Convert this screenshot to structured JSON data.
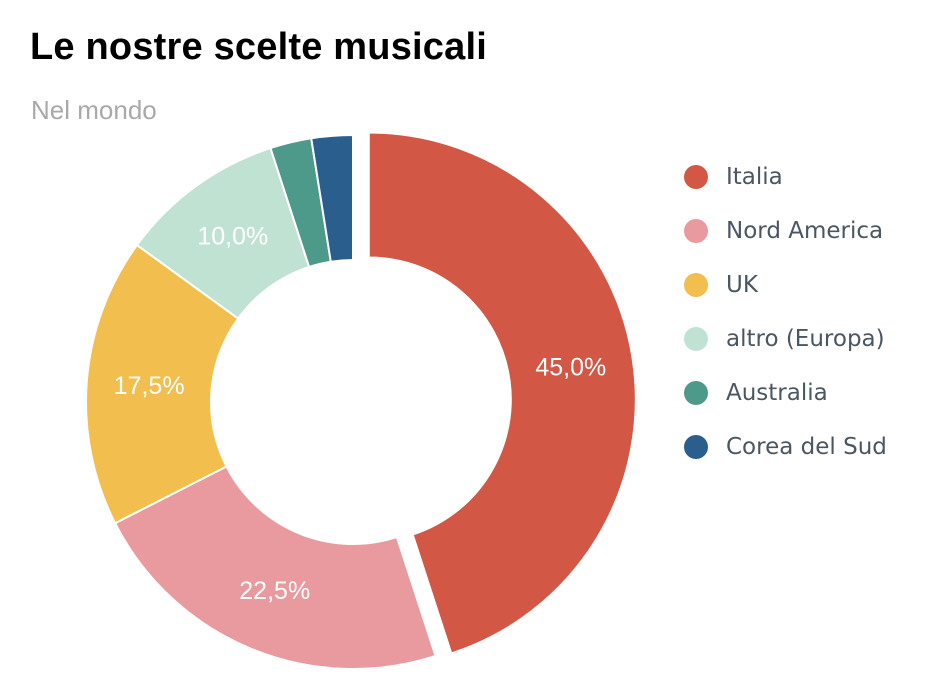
{
  "header": {
    "title": "Le nostre scelte musicali",
    "subtitle": "Nel mondo"
  },
  "chart_data": {
    "type": "pie",
    "variant": "donut",
    "title": "Le nostre scelte musicali",
    "subtitle": "Nel mondo",
    "legend_position": "right",
    "exploded_slice": "Italia",
    "slices": [
      {
        "label": "Italia",
        "value": 45.0,
        "display": "45,0%",
        "color": "#d35745"
      },
      {
        "label": "Nord America",
        "value": 22.5,
        "display": "22,5%",
        "color": "#e99a9f"
      },
      {
        "label": "UK",
        "value": 17.5,
        "display": "17,5%",
        "color": "#f2be4e"
      },
      {
        "label": "altro (Europa)",
        "value": 10.0,
        "display": "10,0%",
        "color": "#c0e2d3"
      },
      {
        "label": "Australia",
        "value": 2.5,
        "display": "",
        "color": "#4e9a8a"
      },
      {
        "label": "Corea del Sud",
        "value": 2.5,
        "display": "",
        "color": "#2a5e8c"
      }
    ]
  }
}
